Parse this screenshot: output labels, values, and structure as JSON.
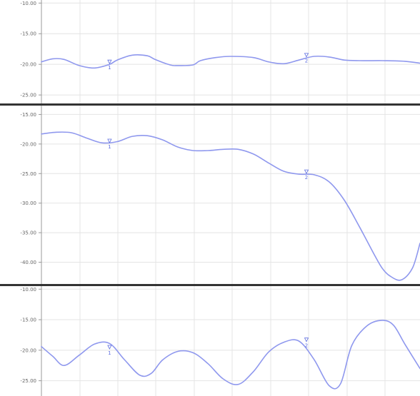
{
  "colors": {
    "series": "#8f98ee",
    "grid": "#e4e4e4",
    "axis": "#999999",
    "separator": "#333333",
    "marker": "#6070e0"
  },
  "chart_data": [
    {
      "type": "line",
      "title": "",
      "xlabel": "",
      "ylabel": "",
      "ylim": [
        -26.5,
        -9.5
      ],
      "y_ticks": [
        -10,
        -15,
        -20,
        -25
      ],
      "y_tick_labels": [
        "-10.00",
        "-15.00",
        "-20.00",
        "-25.00"
      ],
      "grid": true,
      "x": [
        0,
        0.03,
        0.06,
        0.1,
        0.14,
        0.18,
        0.2,
        0.24,
        0.28,
        0.3,
        0.34,
        0.36,
        0.4,
        0.42,
        0.46,
        0.5,
        0.56,
        0.6,
        0.64,
        0.68,
        0.72,
        0.76,
        0.8,
        0.84,
        0.9,
        0.96,
        1.0
      ],
      "series": [
        {
          "values": [
            -19.6,
            -19.1,
            -19.2,
            -20.2,
            -20.6,
            -20.0,
            -19.3,
            -18.5,
            -18.6,
            -19.2,
            -20.1,
            -20.2,
            -20.1,
            -19.4,
            -18.9,
            -18.7,
            -18.9,
            -19.6,
            -19.9,
            -19.3,
            -18.7,
            -18.8,
            -19.3,
            -19.4,
            -19.4,
            -19.5,
            -19.8
          ]
        }
      ],
      "markers": [
        {
          "x": 0.18,
          "y": -20.0,
          "label": "1"
        },
        {
          "x": 0.7,
          "y": -18.9,
          "label": "2"
        }
      ]
    },
    {
      "type": "line",
      "title": "",
      "xlabel": "",
      "ylabel": "",
      "ylim": [
        -43.8,
        -13.5
      ],
      "y_ticks": [
        -15,
        -20,
        -25,
        -30,
        -35,
        -40
      ],
      "y_tick_labels": [
        "-15.00",
        "-20.00",
        "-25.00",
        "-30.00",
        "-35.00",
        "-40.00"
      ],
      "grid": true,
      "x": [
        0,
        0.04,
        0.08,
        0.12,
        0.16,
        0.2,
        0.24,
        0.28,
        0.32,
        0.36,
        0.4,
        0.44,
        0.48,
        0.52,
        0.56,
        0.6,
        0.64,
        0.68,
        0.72,
        0.76,
        0.8,
        0.84,
        0.88,
        0.9,
        0.92,
        0.95,
        0.98,
        1.0
      ],
      "series": [
        {
          "values": [
            -18.3,
            -18.0,
            -18.1,
            -19.0,
            -19.8,
            -19.6,
            -18.7,
            -18.6,
            -19.3,
            -20.5,
            -21.1,
            -21.1,
            -20.9,
            -20.9,
            -21.7,
            -23.2,
            -24.6,
            -25.1,
            -25.2,
            -26.4,
            -29.5,
            -34.0,
            -38.8,
            -41.0,
            -42.3,
            -43.0,
            -41.0,
            -36.8
          ]
        }
      ],
      "markers": [
        {
          "x": 0.18,
          "y": -19.9,
          "label": "1"
        },
        {
          "x": 0.7,
          "y": -25.1,
          "label": "2"
        }
      ]
    },
    {
      "type": "line",
      "title": "",
      "xlabel": "",
      "ylabel": "",
      "ylim": [
        -27.5,
        -9.5
      ],
      "y_ticks": [
        -10,
        -15,
        -20,
        -25
      ],
      "y_tick_labels": [
        "-10.00",
        "-15.00",
        "-20.00",
        "-25.00"
      ],
      "grid": true,
      "x": [
        0,
        0.03,
        0.06,
        0.1,
        0.14,
        0.18,
        0.22,
        0.26,
        0.29,
        0.32,
        0.36,
        0.4,
        0.44,
        0.48,
        0.52,
        0.56,
        0.6,
        0.64,
        0.68,
        0.72,
        0.76,
        0.79,
        0.82,
        0.86,
        0.9,
        0.93,
        0.96,
        1.0
      ],
      "series": [
        {
          "values": [
            -19.4,
            -21.0,
            -22.5,
            -20.8,
            -19.0,
            -18.9,
            -21.6,
            -24.1,
            -23.8,
            -21.6,
            -20.2,
            -20.4,
            -22.2,
            -24.7,
            -25.6,
            -23.5,
            -20.3,
            -18.7,
            -18.5,
            -21.5,
            -25.8,
            -25.5,
            -19.2,
            -16.0,
            -15.1,
            -15.9,
            -19.0,
            -23.0
          ]
        }
      ],
      "markers": [
        {
          "x": 0.18,
          "y": -19.9,
          "label": "1"
        },
        {
          "x": 0.7,
          "y": -18.7,
          "label": "2"
        }
      ]
    }
  ]
}
